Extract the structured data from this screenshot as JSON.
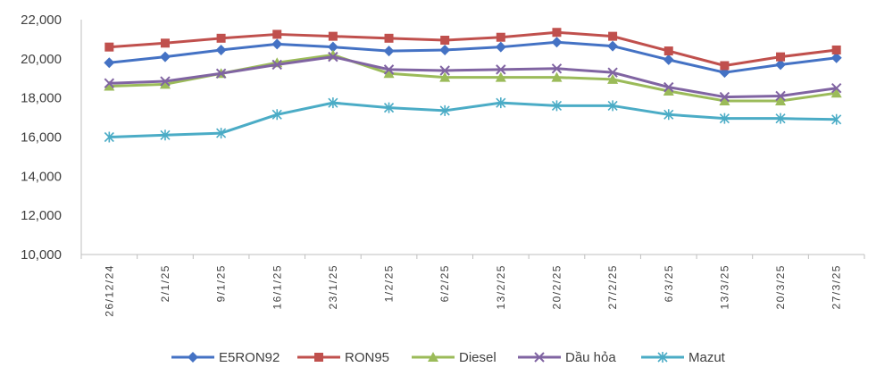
{
  "chart_data": {
    "type": "line",
    "title": "",
    "xlabel": "",
    "ylabel": "",
    "categories": [
      "26/12/24",
      "2/1/25",
      "9/1/25",
      "16/1/25",
      "23/1/25",
      "1/2/25",
      "6/2/25",
      "13/2/25",
      "20/2/25",
      "27/2/25",
      "6/3/25",
      "13/3/25",
      "20/3/25",
      "27/3/25"
    ],
    "ylim": [
      10000,
      22000
    ],
    "yticks": [
      10000,
      12000,
      14000,
      16000,
      18000,
      20000,
      22000
    ],
    "ytick_labels": [
      "10,000",
      "12,000",
      "14,000",
      "16,000",
      "18,000",
      "20,000",
      "22,000"
    ],
    "grid": false,
    "legend_position": "bottom",
    "series": [
      {
        "name": "E5RON92",
        "color": "#4472c4",
        "marker": "diamond",
        "values": [
          19800,
          20100,
          20450,
          20750,
          20600,
          20400,
          20450,
          20600,
          20850,
          20650,
          19950,
          19300,
          19700,
          20050
        ]
      },
      {
        "name": "RON95",
        "color": "#c0504d",
        "marker": "square",
        "values": [
          20600,
          20800,
          21050,
          21250,
          21150,
          21050,
          20950,
          21100,
          21350,
          21150,
          20400,
          19650,
          20100,
          20450
        ]
      },
      {
        "name": "Diesel",
        "color": "#9bbb59",
        "marker": "triangle",
        "values": [
          18600,
          18700,
          19250,
          19800,
          20200,
          19250,
          19050,
          19050,
          19050,
          18950,
          18350,
          17850,
          17850,
          18250
        ]
      },
      {
        "name": "Dầu hỏa",
        "color": "#8064a2",
        "marker": "x",
        "values": [
          18750,
          18850,
          19250,
          19700,
          20100,
          19450,
          19400,
          19450,
          19500,
          19300,
          18550,
          18050,
          18100,
          18500
        ]
      },
      {
        "name": "Mazut",
        "color": "#4bacc6",
        "marker": "asterisk",
        "values": [
          16000,
          16100,
          16200,
          17150,
          17750,
          17500,
          17350,
          17750,
          17600,
          17600,
          17150,
          16950,
          16950,
          16900
        ]
      }
    ]
  }
}
